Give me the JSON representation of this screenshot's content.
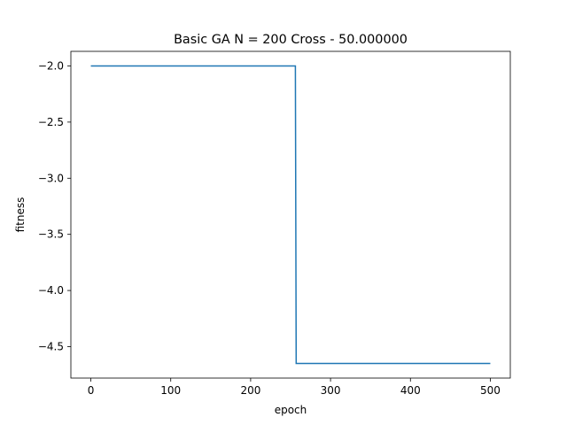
{
  "chart_data": {
    "type": "line",
    "title": "Basic GA N = 200 Cross - 50.000000",
    "xlabel": "epoch",
    "ylabel": "fitness",
    "xlim": [
      -25,
      525
    ],
    "ylim": [
      -4.78,
      -1.87
    ],
    "xticks": [
      0,
      100,
      200,
      300,
      400,
      500
    ],
    "xtick_labels": [
      "0",
      "100",
      "200",
      "300",
      "400",
      "500"
    ],
    "yticks": [
      -2.0,
      -2.5,
      -3.0,
      -3.5,
      -4.0,
      -4.5
    ],
    "ytick_labels": [
      "−2.0",
      "−2.5",
      "−3.0",
      "−3.5",
      "−4.0",
      "−4.5"
    ],
    "grid": false,
    "legend": "none",
    "series": [
      {
        "color": "#1f77b4",
        "x": [
          0,
          256,
          257,
          500
        ],
        "y": [
          -2.0,
          -2.0,
          -4.65,
          -4.65
        ]
      }
    ]
  }
}
